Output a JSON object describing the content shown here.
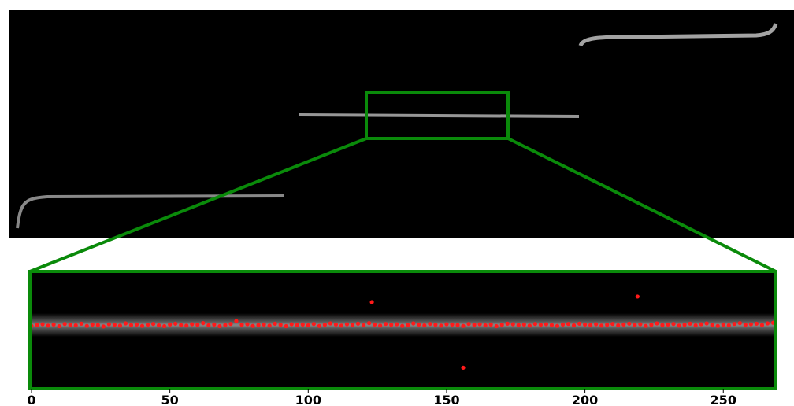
{
  "chart_data": {
    "type": "scatter",
    "color": "#ff1a1a",
    "x": [
      0,
      2,
      4,
      6,
      8,
      10,
      12,
      14,
      16,
      18,
      20,
      22,
      24,
      26,
      28,
      30,
      32,
      34,
      36,
      38,
      40,
      42,
      44,
      46,
      48,
      50,
      52,
      54,
      56,
      58,
      60,
      62,
      64,
      66,
      68,
      70,
      72,
      74,
      76,
      78,
      80,
      82,
      84,
      86,
      88,
      90,
      92,
      94,
      96,
      98,
      100,
      102,
      104,
      106,
      108,
      110,
      112,
      114,
      116,
      118,
      120,
      122,
      124,
      126,
      128,
      130,
      132,
      134,
      136,
      138,
      140,
      142,
      144,
      146,
      148,
      150,
      152,
      154,
      156,
      158,
      160,
      162,
      164,
      166,
      168,
      170,
      172,
      174,
      176,
      178,
      180,
      182,
      184,
      186,
      188,
      190,
      192,
      194,
      196,
      198,
      200,
      202,
      204,
      206,
      208,
      210,
      212,
      214,
      216,
      218,
      220,
      222,
      224,
      226,
      228,
      230,
      232,
      234,
      236,
      238,
      240,
      242,
      244,
      246,
      248,
      250,
      252,
      254,
      256,
      258,
      260,
      262,
      264,
      266,
      268,
      123,
      156,
      219
    ],
    "values": [
      22.5,
      22.8,
      23.1,
      22.6,
      23.0,
      22.4,
      23.2,
      22.9,
      22.7,
      23.3,
      22.5,
      23.0,
      22.8,
      22.3,
      23.1,
      22.9,
      22.6,
      23.4,
      22.8,
      23.0,
      22.5,
      22.9,
      23.2,
      22.7,
      22.4,
      23.0,
      23.3,
      22.8,
      22.6,
      23.1,
      22.9,
      23.5,
      22.7,
      23.0,
      22.4,
      22.8,
      23.2,
      24.2,
      22.9,
      23.1,
      22.5,
      22.8,
      23.0,
      22.6,
      23.3,
      22.9,
      22.4,
      23.1,
      22.8,
      23.0,
      22.7,
      23.2,
      22.5,
      22.9,
      23.4,
      23.0,
      22.6,
      23.1,
      22.8,
      23.3,
      22.7,
      23.5,
      23.0,
      22.6,
      23.2,
      22.9,
      23.1,
      22.5,
      22.8,
      23.4,
      23.0,
      22.7,
      23.2,
      22.9,
      22.6,
      23.1,
      23.0,
      22.8,
      22.5,
      23.2,
      22.9,
      23.1,
      22.7,
      23.0,
      22.4,
      22.9,
      23.3,
      23.1,
      22.8,
      23.0,
      22.6,
      23.2,
      22.9,
      23.1,
      22.8,
      22.5,
      23.0,
      23.2,
      22.7,
      23.3,
      23.0,
      22.8,
      23.1,
      22.6,
      22.9,
      23.2,
      22.7,
      23.0,
      23.3,
      22.8,
      23.1,
      22.5,
      22.9,
      23.4,
      22.8,
      23.0,
      23.2,
      22.6,
      22.9,
      23.3,
      22.7,
      23.1,
      23.4,
      22.8,
      22.5,
      23.0,
      22.7,
      23.2,
      23.5,
      22.9,
      23.1,
      23.3,
      22.8,
      23.4,
      23.6,
      31,
      7.5,
      33
    ],
    "xlim": [
      0,
      269
    ],
    "xticks": [
      0,
      50,
      100,
      150,
      200,
      250
    ],
    "ylim": [
      0,
      42
    ]
  }
}
